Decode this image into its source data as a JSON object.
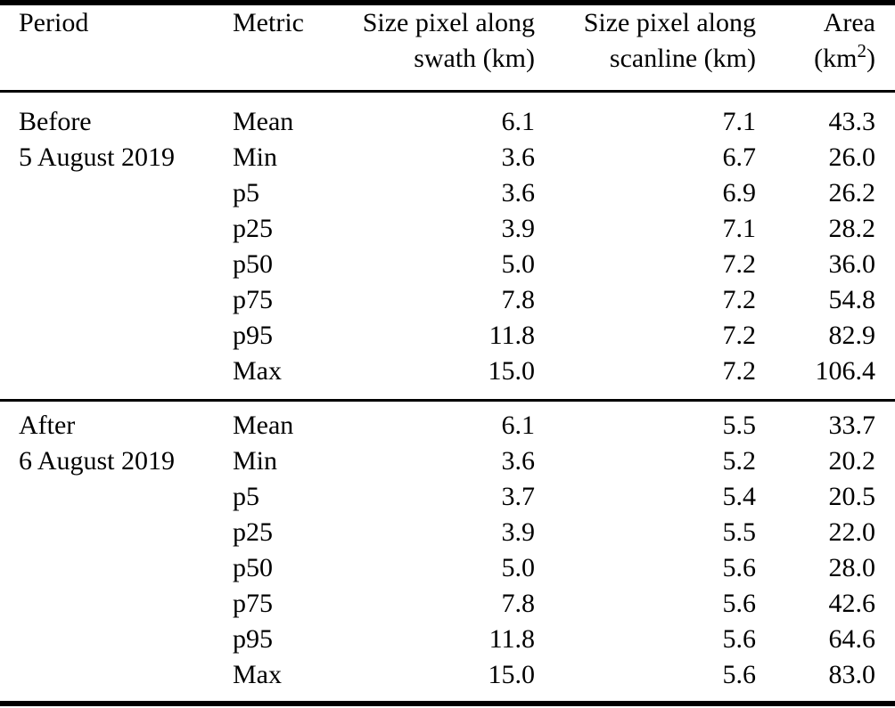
{
  "colors": {
    "text": "#000000",
    "background": "#ffffff",
    "rule": "#000000"
  },
  "table": {
    "header": {
      "period": "Period",
      "metric": "Metric",
      "swath_line1": "Size pixel along",
      "swath_line2": "swath (km)",
      "scanline_line1": "Size pixel along",
      "scanline_line2": "scanline (km)",
      "area_line1": "Area",
      "area_unit_pre": "(km",
      "area_unit_sup": "2",
      "area_unit_post": ")"
    },
    "sections": [
      {
        "period_line1": "Before",
        "period_line2": "5 August 2019",
        "rows": [
          {
            "metric": "Mean",
            "swath": "6.1",
            "scanline": "7.1",
            "area": "43.3"
          },
          {
            "metric": "Min",
            "swath": "3.6",
            "scanline": "6.7",
            "area": "26.0"
          },
          {
            "metric": "p5",
            "swath": "3.6",
            "scanline": "6.9",
            "area": "26.2"
          },
          {
            "metric": "p25",
            "swath": "3.9",
            "scanline": "7.1",
            "area": "28.2"
          },
          {
            "metric": "p50",
            "swath": "5.0",
            "scanline": "7.2",
            "area": "36.0"
          },
          {
            "metric": "p75",
            "swath": "7.8",
            "scanline": "7.2",
            "area": "54.8"
          },
          {
            "metric": "p95",
            "swath": "11.8",
            "scanline": "7.2",
            "area": "82.9"
          },
          {
            "metric": "Max",
            "swath": "15.0",
            "scanline": "7.2",
            "area": "106.4"
          }
        ]
      },
      {
        "period_line1": "After",
        "period_line2": "6 August 2019",
        "rows": [
          {
            "metric": "Mean",
            "swath": "6.1",
            "scanline": "5.5",
            "area": "33.7"
          },
          {
            "metric": "Min",
            "swath": "3.6",
            "scanline": "5.2",
            "area": "20.2"
          },
          {
            "metric": "p5",
            "swath": "3.7",
            "scanline": "5.4",
            "area": "20.5"
          },
          {
            "metric": "p25",
            "swath": "3.9",
            "scanline": "5.5",
            "area": "22.0"
          },
          {
            "metric": "p50",
            "swath": "5.0",
            "scanline": "5.6",
            "area": "28.0"
          },
          {
            "metric": "p75",
            "swath": "7.8",
            "scanline": "5.6",
            "area": "42.6"
          },
          {
            "metric": "p95",
            "swath": "11.8",
            "scanline": "5.6",
            "area": "64.6"
          },
          {
            "metric": "Max",
            "swath": "15.0",
            "scanline": "5.6",
            "area": "83.0"
          }
        ]
      }
    ]
  }
}
